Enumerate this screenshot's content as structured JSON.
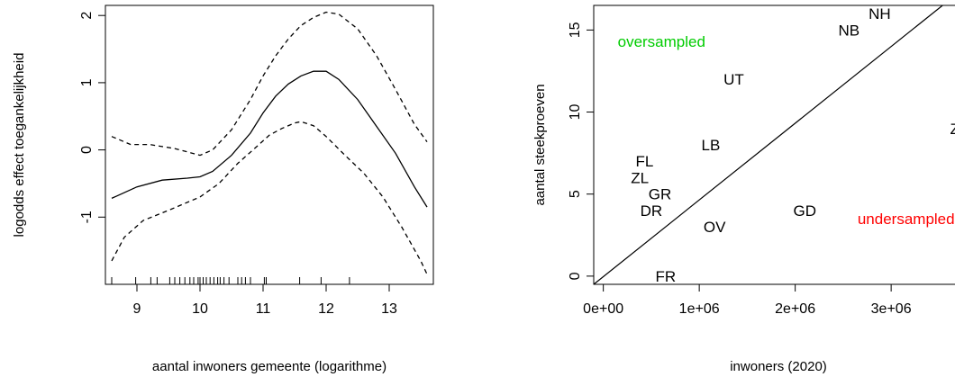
{
  "chart_data": [
    {
      "type": "line",
      "xlabel": "aantal inwoners gemeente (logarithme)",
      "ylabel": "logodds effect toegankelijkheid",
      "xlim": [
        8.5,
        13.7
      ],
      "ylim": [
        -2.0,
        2.15
      ],
      "x_ticks": [
        9,
        10,
        11,
        12,
        13
      ],
      "y_ticks": [
        -1,
        0,
        1,
        2
      ],
      "series": [
        {
          "style": "solid",
          "x": [
            8.6,
            9.0,
            9.4,
            9.8,
            10.0,
            10.2,
            10.5,
            10.8,
            11.0,
            11.2,
            11.4,
            11.6,
            11.8,
            12.0,
            12.2,
            12.5,
            12.8,
            13.1,
            13.4,
            13.6
          ],
          "y": [
            -0.72,
            -0.55,
            -0.45,
            -0.42,
            -0.4,
            -0.32,
            -0.08,
            0.25,
            0.55,
            0.8,
            0.98,
            1.1,
            1.17,
            1.17,
            1.05,
            0.75,
            0.35,
            -0.05,
            -0.55,
            -0.85
          ]
        },
        {
          "style": "dashed",
          "x": [
            8.6,
            8.9,
            9.2,
            9.6,
            10.0,
            10.2,
            10.5,
            10.8,
            11.0,
            11.2,
            11.4,
            11.6,
            11.8,
            12.0,
            12.2,
            12.5,
            12.8,
            13.1,
            13.4,
            13.6
          ],
          "y": [
            0.2,
            0.08,
            0.08,
            0.02,
            -0.08,
            0.0,
            0.3,
            0.75,
            1.1,
            1.4,
            1.65,
            1.85,
            1.97,
            2.05,
            2.02,
            1.8,
            1.4,
            0.9,
            0.38,
            0.12
          ]
        },
        {
          "style": "dashed",
          "x": [
            8.6,
            8.8,
            9.1,
            9.5,
            10.0,
            10.3,
            10.6,
            10.9,
            11.1,
            11.3,
            11.5,
            11.6,
            11.8,
            12.0,
            12.3,
            12.6,
            12.9,
            13.2,
            13.5,
            13.6
          ],
          "y": [
            -1.65,
            -1.3,
            -1.05,
            -0.9,
            -0.7,
            -0.5,
            -0.2,
            0.05,
            0.22,
            0.32,
            0.4,
            0.42,
            0.36,
            0.2,
            -0.08,
            -0.35,
            -0.7,
            -1.15,
            -1.65,
            -1.85
          ]
        }
      ],
      "rug_x": [
        8.6,
        8.98,
        9.22,
        9.32,
        9.52,
        9.6,
        9.68,
        9.76,
        9.84,
        9.9,
        9.97,
        10.0,
        10.05,
        10.1,
        10.16,
        10.22,
        10.28,
        10.32,
        10.38,
        10.46,
        10.6,
        10.66,
        10.72,
        10.8,
        11.02,
        11.05,
        11.58,
        11.92,
        12.37
      ]
    },
    {
      "type": "scatter",
      "xlabel": "inwoners (2020)",
      "ylabel": "aantal steekproeven",
      "xlim": [
        -100000,
        3750000
      ],
      "ylim": [
        -0.5,
        16.5
      ],
      "x_ticks": [
        0,
        1000000,
        2000000,
        3000000
      ],
      "x_tick_labels": [
        "0e+00",
        "1e+06",
        "2e+06",
        "3e+06"
      ],
      "y_ticks": [
        0,
        5,
        10,
        15
      ],
      "points": [
        {
          "label": "NH",
          "x": 2880000,
          "y": 16
        },
        {
          "label": "NB",
          "x": 2560000,
          "y": 15
        },
        {
          "label": "UT",
          "x": 1360000,
          "y": 12
        },
        {
          "label": "ZH",
          "x": 3720000,
          "y": 9
        },
        {
          "label": "LB",
          "x": 1120000,
          "y": 8
        },
        {
          "label": "FL",
          "x": 430000,
          "y": 7
        },
        {
          "label": "ZL",
          "x": 380000,
          "y": 6
        },
        {
          "label": "GR",
          "x": 590000,
          "y": 5
        },
        {
          "label": "DR",
          "x": 500000,
          "y": 4
        },
        {
          "label": "GD",
          "x": 2100000,
          "y": 4
        },
        {
          "label": "OV",
          "x": 1160000,
          "y": 3
        },
        {
          "label": "FR",
          "x": 650000,
          "y": 0
        }
      ],
      "reference_line": {
        "x": [
          -100000,
          3750000
        ],
        "y": [
          -0.5,
          17.5
        ]
      },
      "annotations": [
        {
          "text": "oversampled",
          "x": 150000,
          "y": 14.3,
          "color": "#00cc00"
        },
        {
          "text": "undersampled",
          "x": 2650000,
          "y": 3.5,
          "color": "#ff0000"
        }
      ]
    }
  ]
}
